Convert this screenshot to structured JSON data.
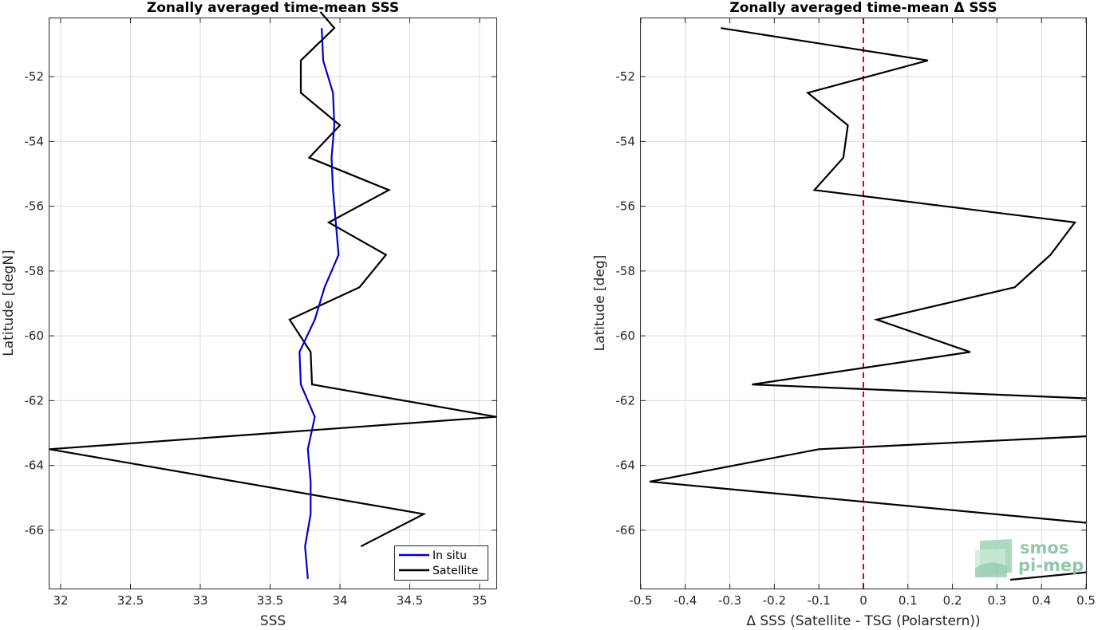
{
  "chart_data": [
    {
      "type": "line",
      "title": "Zonally averaged time-mean SSS",
      "xlabel": "SSS",
      "ylabel": "Latitude [degN]",
      "xlim": [
        31.92,
        35.12
      ],
      "ylim": [
        -67.8,
        -50.2
      ],
      "xticks": [
        32,
        32.5,
        33,
        33.5,
        34,
        34.5,
        35
      ],
      "xtick_labels": [
        "32",
        "32.5",
        "33",
        "33.5",
        "34",
        "34.5",
        "35"
      ],
      "yticks": [
        -66,
        -64,
        -62,
        -60,
        -58,
        -56,
        -54,
        -52
      ],
      "ytick_labels": [
        "-66",
        "-64",
        "-62",
        "-60",
        "-58",
        "-56",
        "-54",
        "-52"
      ],
      "grid": true,
      "legend_position": "bottom-right",
      "series": [
        {
          "name": "In situ",
          "color": "#0000cc",
          "points": [
            [
              33.87,
              -50.5
            ],
            [
              33.88,
              -51.5
            ],
            [
              33.95,
              -52.5
            ],
            [
              33.96,
              -53.5
            ],
            [
              33.94,
              -54.5
            ],
            [
              33.95,
              -55.5
            ],
            [
              33.97,
              -56.5
            ],
            [
              33.99,
              -57.5
            ],
            [
              33.89,
              -58.5
            ],
            [
              33.82,
              -59.5
            ],
            [
              33.71,
              -60.5
            ],
            [
              33.72,
              -61.5
            ],
            [
              33.82,
              -62.5
            ],
            [
              33.77,
              -63.5
            ],
            [
              33.79,
              -64.5
            ],
            [
              33.79,
              -65.5
            ],
            [
              33.75,
              -66.5
            ],
            [
              33.77,
              -67.5
            ]
          ]
        },
        {
          "name": "Satellite",
          "color": "#000000",
          "points": [
            [
              33.86,
              -50.0
            ],
            [
              33.96,
              -50.5
            ],
            [
              33.72,
              -51.5
            ],
            [
              33.72,
              -52.5
            ],
            [
              34.0,
              -53.5
            ],
            [
              33.78,
              -54.5
            ],
            [
              34.35,
              -55.5
            ],
            [
              33.92,
              -56.5
            ],
            [
              34.33,
              -57.5
            ],
            [
              34.14,
              -58.5
            ],
            [
              33.64,
              -59.5
            ],
            [
              33.79,
              -60.5
            ],
            [
              33.8,
              -61.5
            ],
            [
              35.12,
              -62.5
            ],
            [
              31.92,
              -63.5
            ],
            [
              34.6,
              -65.5
            ],
            [
              34.15,
              -66.5
            ]
          ]
        }
      ]
    },
    {
      "type": "line",
      "title": "Zonally averaged time-mean Δ SSS",
      "xlabel": "Δ SSS (Satellite - TSG (Polarstern))",
      "ylabel": "Latitude [deg]",
      "xlim": [
        -0.5,
        0.5
      ],
      "ylim": [
        -67.8,
        -50.2
      ],
      "xticks": [
        -0.5,
        -0.4,
        -0.3,
        -0.2,
        -0.1,
        0,
        0.1,
        0.2,
        0.3,
        0.4,
        0.5
      ],
      "xtick_labels": [
        "-0.5",
        "-0.4",
        "-0.3",
        "-0.2",
        "-0.1",
        "0",
        "0.1",
        "0.2",
        "0.3",
        "0.4",
        "0.5"
      ],
      "yticks": [
        -66,
        -64,
        -62,
        -60,
        -58,
        -56,
        -54,
        -52
      ],
      "ytick_labels": [
        "-66",
        "-64",
        "-62",
        "-60",
        "-58",
        "-56",
        "-54",
        "-52"
      ],
      "grid": true,
      "reference_line": {
        "x": 0,
        "color": "#dd0000",
        "style": "dashed"
      },
      "series": [
        {
          "color": "#000000",
          "points": [
            [
              -0.32,
              -50.5
            ],
            [
              0.145,
              -51.5
            ],
            [
              -0.125,
              -52.5
            ],
            [
              -0.035,
              -53.5
            ],
            [
              -0.045,
              -54.5
            ],
            [
              -0.11,
              -55.5
            ],
            [
              0.475,
              -56.5
            ],
            [
              0.42,
              -57.5
            ],
            [
              0.34,
              -58.5
            ],
            [
              0.03,
              -59.5
            ],
            [
              0.24,
              -60.5
            ],
            [
              -0.25,
              -61.5
            ],
            [
              0.5,
              -61.93
            ]
          ]
        },
        {
          "color": "#000000",
          "points": [
            [
              0.5,
              -63.1
            ],
            [
              -0.1,
              -63.5
            ],
            [
              -0.48,
              -64.5
            ],
            [
              0.5,
              -65.77
            ]
          ]
        },
        {
          "color": "#000000",
          "points": [
            [
              0.33,
              -67.53
            ],
            [
              0.5,
              -67.3
            ]
          ]
        }
      ]
    }
  ],
  "logo": {
    "line1": "smos",
    "line2": "pi-mep",
    "color": "#7fbf9b"
  }
}
